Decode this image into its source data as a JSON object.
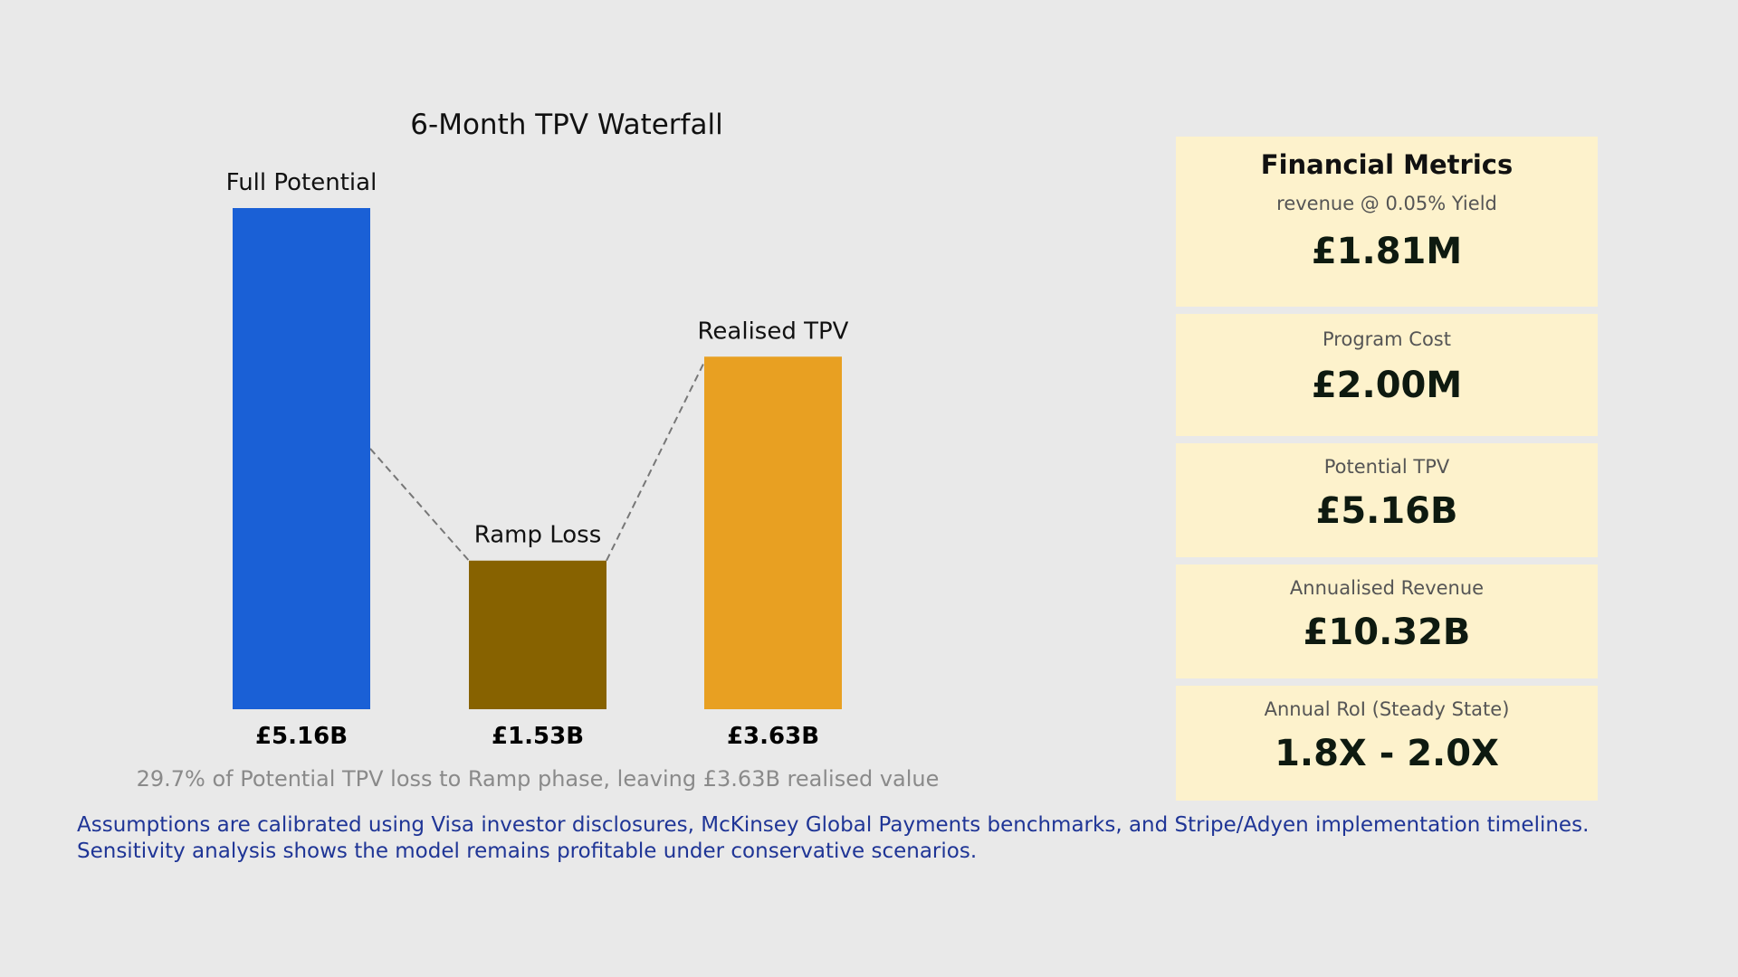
{
  "chart_data": {
    "type": "waterfall",
    "title": "6-Month TPV Waterfall",
    "categories": [
      "Full Potential",
      "Ramp Loss",
      "Realised TPV"
    ],
    "values": [
      5.16,
      1.53,
      3.63
    ],
    "value_labels": [
      "£5.16B",
      "£1.53B",
      "£3.63B"
    ],
    "unit": "£B",
    "colors": [
      "#1a60d6",
      "#876200",
      "#e8a022"
    ],
    "ylim": [
      0,
      5.16
    ],
    "grid": false,
    "caption": "29.7% of Potential TPV loss to Ramp phase, leaving £3.63B realised value"
  },
  "footer": "Assumptions are calibrated using Visa investor disclosures, McKinsey Global Payments benchmarks, and Stripe/Adyen implementation timelines. Sensitivity analysis shows the model remains profitable under conservative scenarios.",
  "metrics": {
    "title": "Financial Metrics",
    "items": [
      {
        "label": "revenue @ 0.05% Yield",
        "value": "£1.81M"
      },
      {
        "label": "Program Cost",
        "value": "£2.00M"
      },
      {
        "label": "Potential TPV",
        "value": "£5.16B"
      },
      {
        "label": "Annualised Revenue",
        "value": "£10.32B"
      },
      {
        "label": "Annual RoI (Steady State)",
        "value": "1.8X - 2.0X"
      }
    ]
  }
}
